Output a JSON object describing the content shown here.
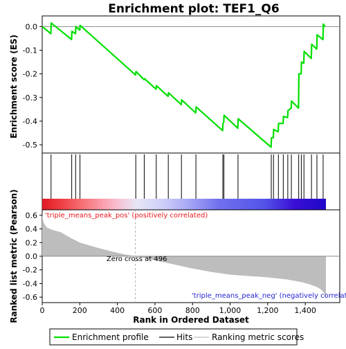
{
  "chart_data": {
    "type": "line",
    "title": "Enrichment plot: TEF1_Q6",
    "xlabel": "Rank in Ordered Dataset",
    "xlim": [
      0,
      1510
    ],
    "x_ticks": [
      0,
      200,
      400,
      600,
      800,
      1000,
      1200,
      1400
    ],
    "x_tick_labels": [
      "0",
      "200",
      "400",
      "600",
      "800",
      "1,000",
      "1,200",
      "1,400"
    ],
    "es_panel": {
      "ylabel": "Enrichment score (ES)",
      "ylim": [
        -0.535,
        0.045
      ],
      "y_ticks": [
        0.0,
        -0.1,
        -0.2,
        -0.3,
        -0.4,
        -0.5
      ],
      "y_tick_labels": [
        "0.0",
        "-0.1",
        "-0.2",
        "-0.3",
        "-0.4",
        "-0.5"
      ],
      "zero_line": true,
      "series": [
        {
          "name": "Enrichment profile",
          "color": "#00e000",
          "x": [
            0,
            46,
            48,
            156,
            158,
            177,
            179,
            200,
            202,
            497,
            499,
            542,
            544,
            606,
            608,
            670,
            672,
            740,
            742,
            817,
            819,
            960,
            962,
            966,
            968,
            1041,
            1043,
            1218,
            1220,
            1230,
            1232,
            1256,
            1258,
            1282,
            1284,
            1306,
            1308,
            1325,
            1327,
            1364,
            1366,
            1378,
            1380,
            1392,
            1394,
            1432,
            1434,
            1461,
            1463,
            1494,
            1496,
            1506
          ],
          "y": [
            0.0,
            -0.03,
            0.015,
            -0.055,
            -0.02,
            -0.03,
            0.0,
            -0.015,
            0.005,
            -0.205,
            -0.19,
            -0.225,
            -0.22,
            -0.265,
            -0.25,
            -0.295,
            -0.28,
            -0.33,
            -0.31,
            -0.365,
            -0.34,
            -0.44,
            -0.41,
            -0.405,
            -0.375,
            -0.43,
            -0.39,
            -0.51,
            -0.47,
            -0.47,
            -0.435,
            -0.445,
            -0.41,
            -0.41,
            -0.38,
            -0.385,
            -0.355,
            -0.345,
            -0.315,
            -0.345,
            -0.2,
            -0.2,
            -0.15,
            -0.155,
            -0.105,
            -0.135,
            -0.075,
            -0.095,
            -0.035,
            -0.055,
            0.01,
            0.0
          ]
        }
      ]
    },
    "hits_panel": {
      "hit_ranks": [
        47,
        157,
        178,
        201,
        498,
        543,
        607,
        671,
        741,
        818,
        961,
        967,
        1042,
        1219,
        1231,
        1257,
        1283,
        1307,
        1326,
        1365,
        1379,
        1393,
        1433,
        1462,
        1495
      ],
      "heat_stops": [
        {
          "rank": 0,
          "color": "#e01a22"
        },
        {
          "rank": 90,
          "color": "#ee3a40"
        },
        {
          "rank": 200,
          "color": "#f66a6e"
        },
        {
          "rank": 380,
          "color": "#fbb7c9"
        },
        {
          "rank": 500,
          "color": "#e6e6f6"
        },
        {
          "rank": 640,
          "color": "#cfcffa"
        },
        {
          "rank": 790,
          "color": "#a4a4f6"
        },
        {
          "rank": 940,
          "color": "#7070ee"
        },
        {
          "rank": 1180,
          "color": "#5454e8"
        },
        {
          "rank": 1340,
          "color": "#3a0fd6"
        },
        {
          "rank": 1510,
          "color": "#2008c8"
        }
      ]
    },
    "metric_panel": {
      "ylabel": "Ranked list metric (Pearson)",
      "ylim": [
        -0.68,
        0.68
      ],
      "y_ticks": [
        0.6,
        0.4,
        0.2,
        0.0,
        -0.2,
        -0.4,
        -0.6
      ],
      "y_tick_labels": [
        "0.6",
        "0.4",
        "0.2",
        "0.0",
        "-0.2",
        "-0.4",
        "-0.6"
      ],
      "fill_color": "#bdbdbd",
      "x": [
        0,
        4,
        10,
        25,
        50,
        100,
        150,
        200,
        300,
        400,
        450,
        496,
        600,
        700,
        800,
        900,
        1000,
        1100,
        1200,
        1300,
        1380,
        1420,
        1460,
        1480,
        1495,
        1502,
        1506,
        1510
      ],
      "y": [
        0.62,
        0.52,
        0.48,
        0.42,
        0.39,
        0.35,
        0.27,
        0.2,
        0.12,
        0.05,
        0.02,
        0.0,
        -0.06,
        -0.12,
        -0.18,
        -0.23,
        -0.27,
        -0.29,
        -0.31,
        -0.34,
        -0.38,
        -0.41,
        -0.45,
        -0.48,
        -0.52,
        -0.55,
        -0.6,
        -0.62
      ],
      "zero_cross_rank": 496,
      "zero_cross_label": "Zero cross at 496",
      "pos_label": "'triple_means_peak_pos' (positively correlated)",
      "neg_label": "'triple_means_peak_neg' (negatively correlated)"
    },
    "legend": {
      "placement": "bottom",
      "items": [
        {
          "label": "Enrichment profile",
          "color": "#00e000"
        },
        {
          "label": "Hits",
          "color": "#000000"
        },
        {
          "label": "Ranking metric scores",
          "color": "#bdbdbd"
        }
      ]
    }
  }
}
